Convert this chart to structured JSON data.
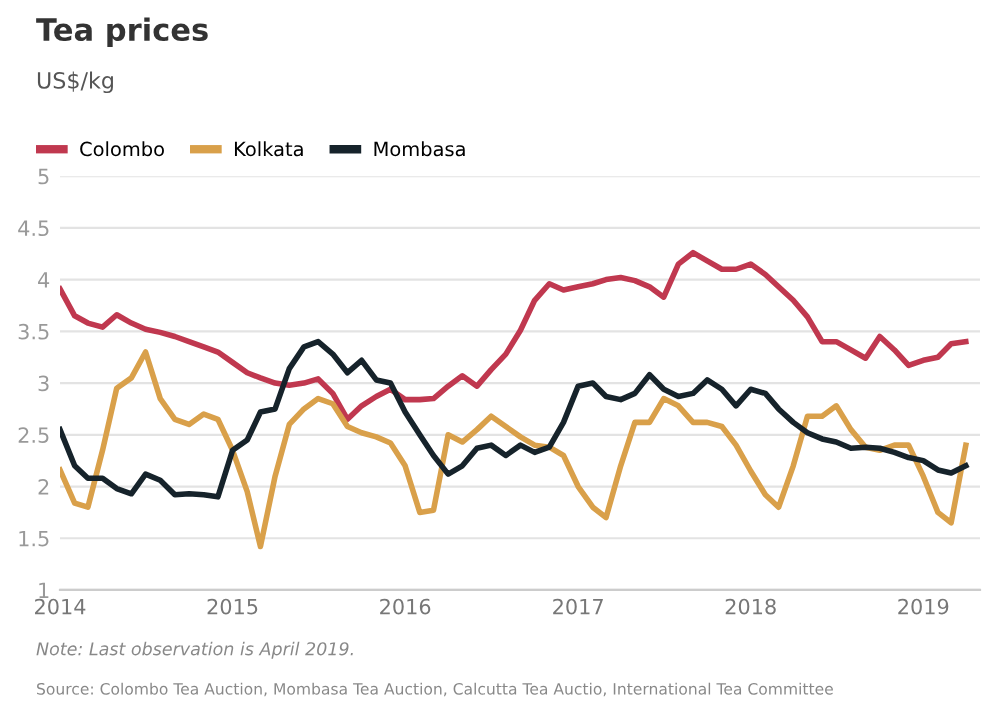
{
  "chart_data": {
    "type": "line",
    "title": "Tea prices",
    "ylabel": "US$/kg",
    "x": [
      "2014-01",
      "2014-02",
      "2014-03",
      "2014-04",
      "2014-05",
      "2014-06",
      "2014-07",
      "2014-08",
      "2014-09",
      "2014-10",
      "2014-11",
      "2014-12",
      "2015-01",
      "2015-02",
      "2015-03",
      "2015-04",
      "2015-05",
      "2015-06",
      "2015-07",
      "2015-08",
      "2015-09",
      "2015-10",
      "2015-11",
      "2015-12",
      "2016-01",
      "2016-02",
      "2016-03",
      "2016-04",
      "2016-05",
      "2016-06",
      "2016-07",
      "2016-08",
      "2016-09",
      "2016-10",
      "2016-11",
      "2016-12",
      "2017-01",
      "2017-02",
      "2017-03",
      "2017-04",
      "2017-05",
      "2017-06",
      "2017-07",
      "2017-08",
      "2017-09",
      "2017-10",
      "2017-11",
      "2017-12",
      "2018-01",
      "2018-02",
      "2018-03",
      "2018-04",
      "2018-05",
      "2018-06",
      "2018-07",
      "2018-08",
      "2018-09",
      "2018-10",
      "2018-11",
      "2018-12",
      "2019-01",
      "2019-02",
      "2019-03",
      "2019-04"
    ],
    "series": [
      {
        "name": "Colombo",
        "color": "#c0384f",
        "values": [
          3.91,
          3.65,
          3.58,
          3.54,
          3.66,
          3.58,
          3.52,
          3.49,
          3.45,
          3.4,
          3.35,
          3.3,
          3.2,
          3.1,
          3.05,
          3.0,
          2.98,
          3.0,
          3.04,
          2.9,
          2.65,
          2.78,
          2.87,
          2.94,
          2.84,
          2.84,
          2.85,
          2.97,
          3.07,
          2.97,
          3.13,
          3.28,
          3.51,
          3.8,
          3.96,
          3.9,
          3.93,
          3.96,
          4.0,
          4.02,
          3.99,
          3.93,
          3.83,
          4.15,
          4.26,
          4.18,
          4.1,
          4.1,
          4.15,
          4.05,
          3.93,
          3.8,
          3.64,
          3.4,
          3.4,
          3.32,
          3.24,
          3.45,
          3.32,
          3.17,
          3.22,
          3.25,
          3.38,
          3.4
        ]
      },
      {
        "name": "Kolkata",
        "color": "#d9a04a",
        "values": [
          2.16,
          1.84,
          1.8,
          2.35,
          2.95,
          3.05,
          3.3,
          2.85,
          2.65,
          2.6,
          2.7,
          2.65,
          2.35,
          1.95,
          1.42,
          2.1,
          2.6,
          2.75,
          2.85,
          2.8,
          2.58,
          2.52,
          2.48,
          2.42,
          2.2,
          1.75,
          1.77,
          2.5,
          2.43,
          2.55,
          2.68,
          2.58,
          2.48,
          2.4,
          2.38,
          2.3,
          2.0,
          1.8,
          1.7,
          2.2,
          2.62,
          2.62,
          2.85,
          2.78,
          2.62,
          2.62,
          2.58,
          2.4,
          2.15,
          1.92,
          1.8,
          2.2,
          2.68,
          2.68,
          2.78,
          2.55,
          2.38,
          2.35,
          2.4,
          2.4,
          2.1,
          1.75,
          1.65,
          2.4
        ]
      },
      {
        "name": "Mombasa",
        "color": "#16232b",
        "values": [
          2.55,
          2.2,
          2.08,
          2.08,
          1.98,
          1.93,
          2.12,
          2.06,
          1.92,
          1.93,
          1.92,
          1.9,
          2.35,
          2.45,
          2.72,
          2.75,
          3.14,
          3.35,
          3.4,
          3.28,
          3.1,
          3.22,
          3.03,
          3.0,
          2.72,
          2.5,
          2.3,
          2.12,
          2.2,
          2.37,
          2.4,
          2.3,
          2.4,
          2.33,
          2.38,
          2.62,
          2.97,
          3.0,
          2.87,
          2.84,
          2.9,
          3.08,
          2.94,
          2.87,
          2.9,
          3.03,
          2.94,
          2.78,
          2.94,
          2.9,
          2.75,
          2.62,
          2.52,
          2.46,
          2.43,
          2.37,
          2.38,
          2.37,
          2.33,
          2.28,
          2.25,
          2.16,
          2.13,
          2.2
        ]
      }
    ],
    "xlim": [
      "2014-01",
      "2019-05"
    ],
    "xticks": [
      {
        "value": "2014-01",
        "label": "2014"
      },
      {
        "value": "2015-01",
        "label": "2015"
      },
      {
        "value": "2016-01",
        "label": "2016"
      },
      {
        "value": "2017-01",
        "label": "2017"
      },
      {
        "value": "2018-01",
        "label": "2018"
      },
      {
        "value": "2019-01",
        "label": "2019"
      }
    ],
    "ylim": [
      1,
      5
    ],
    "yticks": [
      1,
      1.5,
      2,
      2.5,
      3,
      3.5,
      4,
      4.5,
      5
    ],
    "grid": "y",
    "legend": "top left",
    "marker": "none",
    "line_style": "solid",
    "annotations": [
      "Note: Last observation is April 2019.",
      "Source: Colombo Tea Auction, Mombasa Tea Auction, Calcutta Tea Auctio, International Tea Committee"
    ]
  }
}
